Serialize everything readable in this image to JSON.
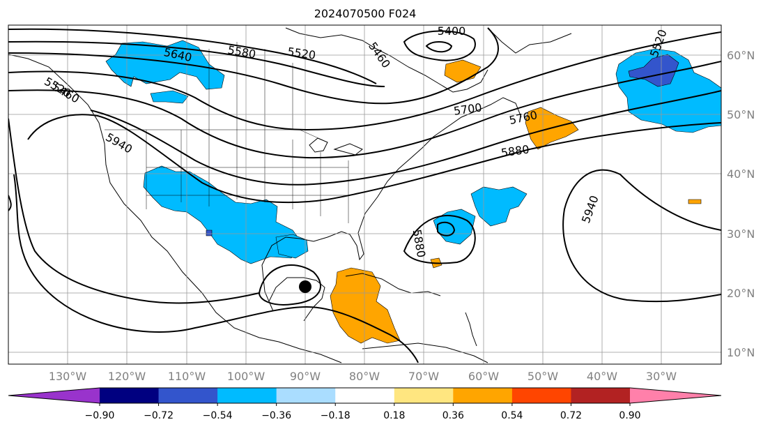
{
  "title": "2024070500 F024",
  "map": {
    "projection": "plate-carree",
    "lon_range": [
      -140,
      -20
    ],
    "lat_range": [
      8,
      65
    ],
    "lon_ticks": [
      "130°W",
      "120°W",
      "110°W",
      "100°W",
      "90°W",
      "80°W",
      "70°W",
      "60°W",
      "50°W",
      "40°W",
      "30°W"
    ],
    "lat_ticks": [
      "60°N",
      "50°N",
      "40°N",
      "30°N",
      "20°N",
      "10°N"
    ],
    "gridlines": true,
    "coastline_color": "#000000",
    "contour_color": "#000000"
  },
  "contours": {
    "field": "500 hPa geopotential height",
    "labels": [
      "5640",
      "5580",
      "5520",
      "5460",
      "5400",
      "5520",
      "5700",
      "5760",
      "5880",
      "5940",
      "5940",
      "5880",
      "5520",
      "5460"
    ]
  },
  "storm_marker": {
    "lon": -90,
    "lat": 21,
    "symbol": "filled-circle"
  },
  "colorbar": {
    "orientation": "horizontal",
    "extend": "both",
    "tick_labels": [
      "−0.90",
      "−0.72",
      "−0.54",
      "−0.36",
      "−0.18",
      "0.18",
      "0.36",
      "0.54",
      "0.72",
      "0.90"
    ],
    "colors": [
      "#9933cc",
      "#000080",
      "#3355cc",
      "#00bbff",
      "#aaddff",
      "#ffffff",
      "#ffe680",
      "#ffa500",
      "#ff4500",
      "#b22222",
      "#ff80aa"
    ],
    "under_color": "#9933cc",
    "over_color": "#ff80aa"
  }
}
